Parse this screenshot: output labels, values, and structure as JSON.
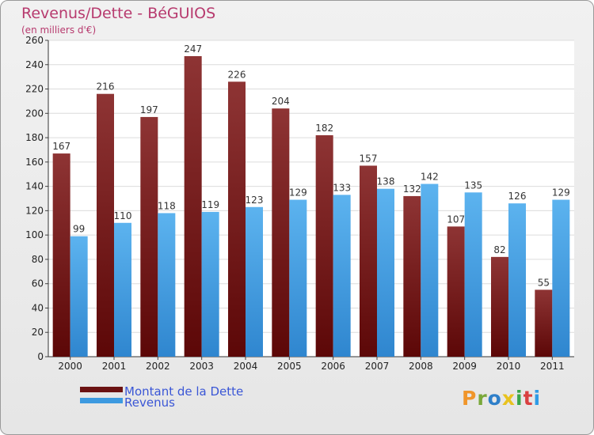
{
  "title": "Revenus/Dette - BéGUIOS",
  "subtitle": "(en milliers d'€)",
  "logo_text": "Proxiti",
  "logo_colors": [
    "#f0952a",
    "#7aa83a",
    "#2e7fc9",
    "#e8c21e",
    "#3aa64a",
    "#d94141",
    "#2f9be6"
  ],
  "chart_data": {
    "type": "bar",
    "categories": [
      "2000",
      "2001",
      "2002",
      "2003",
      "2004",
      "2005",
      "2006",
      "2007",
      "2008",
      "2009",
      "2010",
      "2011"
    ],
    "series": [
      {
        "name": "Montant de la Dette",
        "color": "#7a1f1f",
        "values": [
          167,
          216,
          197,
          247,
          226,
          204,
          182,
          157,
          132,
          107,
          82,
          55
        ]
      },
      {
        "name": "Revenus",
        "color": "#3d9ae0",
        "values": [
          99,
          110,
          118,
          119,
          123,
          129,
          133,
          138,
          142,
          135,
          126,
          129
        ]
      }
    ],
    "ylim": [
      0,
      260
    ],
    "yticks": [
      0,
      20,
      40,
      60,
      80,
      100,
      120,
      140,
      160,
      180,
      200,
      220,
      240,
      260
    ],
    "grid": true,
    "legend": "bottom-left"
  }
}
